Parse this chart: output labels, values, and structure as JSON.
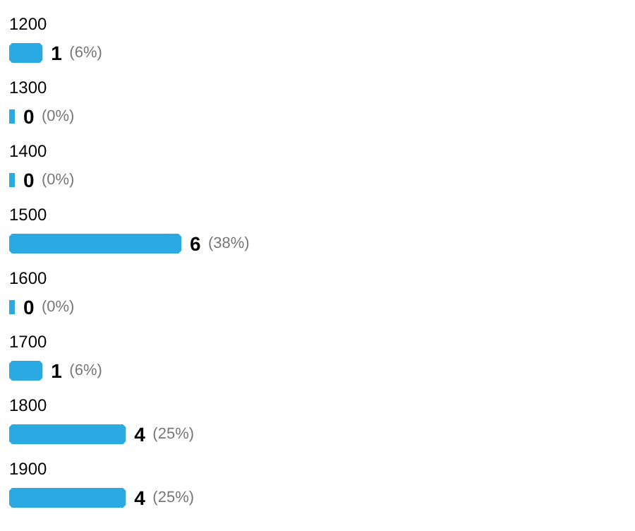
{
  "chart_data": {
    "type": "bar",
    "orientation": "horizontal",
    "categories": [
      "1200",
      "1300",
      "1400",
      "1500",
      "1600",
      "1700",
      "1800",
      "1900"
    ],
    "values": [
      1,
      0,
      0,
      6,
      0,
      1,
      4,
      4
    ],
    "color": "#2aa9e2",
    "value_labels": [
      "1 (6%)",
      "0 (0%)",
      "0 (0%)",
      "6 (38%)",
      "0 (0%)",
      "1 (6%)",
      "4 (25%)",
      "4 (25%)"
    ]
  }
}
